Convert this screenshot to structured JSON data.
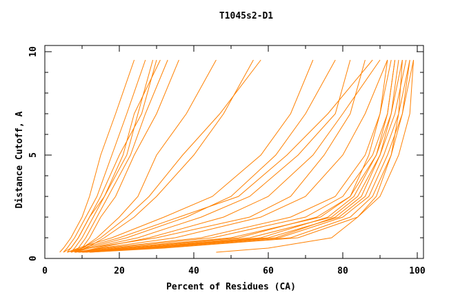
{
  "chart_data": {
    "type": "line",
    "title": "T1045s2-D1",
    "xlabel": "Percent of Residues (CA)",
    "ylabel": "Distance Cutoff, A",
    "xlim": [
      0,
      100
    ],
    "ylim": [
      0,
      10
    ],
    "x_ticks": [
      "0",
      "20",
      "40",
      "60",
      "80",
      "100"
    ],
    "y_ticks": [
      "0",
      "5",
      "10"
    ],
    "grid": false,
    "line_color": "#ff8000",
    "y_levels": [
      0.3,
      0.5,
      1,
      2,
      3,
      5,
      7,
      9.6
    ],
    "series": [
      {
        "x": [
          4,
          5,
          7,
          10,
          12,
          15,
          19,
          24
        ]
      },
      {
        "x": [
          5,
          6,
          8,
          11,
          14,
          18,
          22,
          27
        ]
      },
      {
        "x": [
          6,
          7,
          9,
          12,
          15,
          20,
          26,
          30
        ]
      },
      {
        "x": [
          7,
          8,
          10,
          13,
          16,
          21,
          24,
          31
        ]
      },
      {
        "x": [
          8,
          9,
          11,
          14,
          17,
          23,
          27,
          33
        ]
      },
      {
        "x": [
          9,
          10,
          12,
          15,
          19,
          24,
          30,
          36
        ]
      },
      {
        "x": [
          5,
          7,
          9,
          12,
          16,
          22,
          25,
          29
        ]
      },
      {
        "x": [
          8,
          10,
          14,
          20,
          25,
          30,
          38,
          46
        ]
      },
      {
        "x": [
          8,
          11,
          16,
          24,
          30,
          40,
          48,
          56
        ]
      },
      {
        "x": [
          7,
          10,
          15,
          22,
          28,
          37,
          47,
          58
        ]
      },
      {
        "x": [
          6,
          9,
          18,
          32,
          45,
          58,
          66,
          72
        ]
      },
      {
        "x": [
          7,
          11,
          22,
          38,
          50,
          62,
          70,
          78
        ]
      },
      {
        "x": [
          8,
          12,
          25,
          42,
          55,
          68,
          78,
          82
        ]
      },
      {
        "x": [
          6,
          10,
          20,
          36,
          52,
          65,
          76,
          88
        ]
      },
      {
        "x": [
          9,
          14,
          28,
          48,
          60,
          72,
          80,
          90
        ]
      },
      {
        "x": [
          7,
          12,
          30,
          55,
          66,
          75,
          82,
          86
        ]
      },
      {
        "x": [
          8,
          15,
          35,
          58,
          70,
          80,
          86,
          92
        ]
      },
      {
        "x": [
          8,
          18,
          45,
          70,
          80,
          88,
          92,
          94
        ]
      },
      {
        "x": [
          8,
          20,
          50,
          74,
          82,
          89,
          93,
          96
        ]
      },
      {
        "x": [
          9,
          22,
          55,
          77,
          84,
          90,
          94,
          97
        ]
      },
      {
        "x": [
          10,
          25,
          60,
          79,
          86,
          91,
          95,
          98
        ]
      },
      {
        "x": [
          10,
          28,
          63,
          80,
          87,
          92,
          96,
          99
        ]
      },
      {
        "x": [
          12,
          30,
          66,
          82,
          88,
          93,
          96,
          98
        ]
      },
      {
        "x": [
          9,
          24,
          58,
          76,
          83,
          89,
          92,
          94
        ]
      },
      {
        "x": [
          11,
          26,
          62,
          78,
          85,
          90,
          93,
          95
        ]
      },
      {
        "x": [
          10,
          20,
          52,
          73,
          82,
          87,
          90,
          92
        ]
      },
      {
        "x": [
          12,
          32,
          68,
          84,
          89,
          93,
          95,
          96
        ]
      },
      {
        "x": [
          8,
          16,
          42,
          66,
          78,
          86,
          90,
          93
        ]
      },
      {
        "x": [
          46,
          60,
          77,
          84,
          90,
          95,
          98,
          99
        ]
      }
    ]
  }
}
